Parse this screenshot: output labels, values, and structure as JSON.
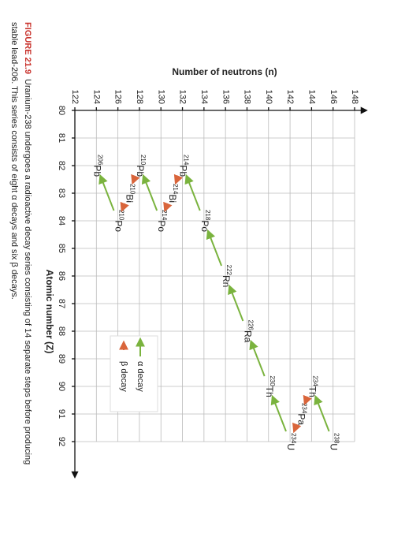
{
  "chart_data": {
    "type": "decay-chain",
    "x_label": "Atomic number (Z)",
    "y_label": "Number of neutrons (n)",
    "xlim": [
      80,
      92
    ],
    "xticks": [
      80,
      81,
      82,
      83,
      84,
      85,
      86,
      87,
      88,
      89,
      90,
      91,
      92
    ],
    "ylim": [
      122,
      148
    ],
    "yticks": [
      122,
      124,
      126,
      128,
      130,
      132,
      134,
      136,
      138,
      140,
      142,
      144,
      146,
      148
    ],
    "grid": true,
    "alpha_color": "#7ab33e",
    "beta_color": "#d9653b",
    "nuclides": [
      {
        "mass": 238,
        "symbol": "U",
        "z": 92,
        "n": 146
      },
      {
        "mass": 234,
        "symbol": "Th",
        "z": 90,
        "n": 144
      },
      {
        "mass": 234,
        "symbol": "Pa",
        "z": 91,
        "n": 143
      },
      {
        "mass": 234,
        "symbol": "U",
        "z": 92,
        "n": 142
      },
      {
        "mass": 230,
        "symbol": "Th",
        "z": 90,
        "n": 140
      },
      {
        "mass": 226,
        "symbol": "Ra",
        "z": 88,
        "n": 138
      },
      {
        "mass": 222,
        "symbol": "Rn",
        "z": 86,
        "n": 136
      },
      {
        "mass": 218,
        "symbol": "Po",
        "z": 84,
        "n": 134
      },
      {
        "mass": 214,
        "symbol": "Pb",
        "z": 82,
        "n": 132
      },
      {
        "mass": 214,
        "symbol": "Bi",
        "z": 83,
        "n": 131
      },
      {
        "mass": 214,
        "symbol": "Po",
        "z": 84,
        "n": 130
      },
      {
        "mass": 210,
        "symbol": "Pb",
        "z": 82,
        "n": 128
      },
      {
        "mass": 210,
        "symbol": "Bi",
        "z": 83,
        "n": 127
      },
      {
        "mass": 210,
        "symbol": "Po",
        "z": 84,
        "n": 126
      },
      {
        "mass": 206,
        "symbol": "Pb",
        "z": 82,
        "n": 124
      }
    ],
    "legend": {
      "alpha": "α decay",
      "beta": "β decay"
    },
    "caption": {
      "label": "FIGURE 21.9",
      "lines": [
        "Uranium-238 undergoes a radioactive decay series consisting of 14 separate steps before producing",
        "stable lead-206. This series consists of eight α decays and six β decays."
      ]
    }
  }
}
